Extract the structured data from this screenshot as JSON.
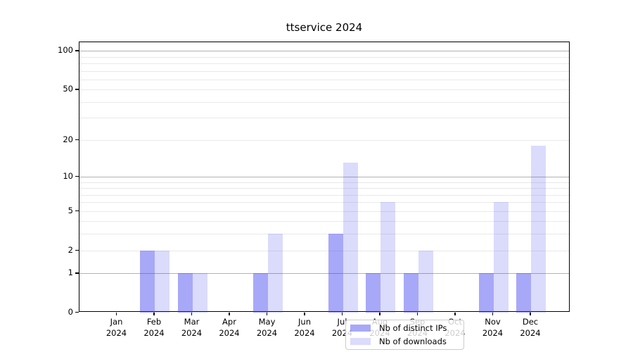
{
  "chart_data": {
    "type": "bar",
    "title": "ttservice 2024",
    "scale": "log1p (positions follow log10 of value+1, 0 at baseline)",
    "categories": [
      "Jan",
      "Feb",
      "Mar",
      "Apr",
      "May",
      "Jun",
      "Jul",
      "Aug",
      "Sep",
      "Oct",
      "Nov",
      "Dec"
    ],
    "category_sublabel": "2024",
    "xlabel": "",
    "ylabel": "",
    "series": [
      {
        "name": "Nb of distinct IPs",
        "color": "rgba(62,62,240,0.45)",
        "values": [
          0,
          2,
          1,
          0,
          1,
          0,
          3,
          1,
          1,
          0,
          1,
          1
        ]
      },
      {
        "name": "Nb of downloads",
        "color": "rgba(62,62,240,0.19)",
        "values": [
          0,
          2,
          1,
          0,
          3,
          0,
          13,
          6,
          2,
          0,
          6,
          18
        ]
      }
    ],
    "yticks": [
      0,
      1,
      2,
      5,
      10,
      20,
      50,
      100
    ],
    "decade_gridlines": [
      1,
      10,
      100
    ],
    "minor_gridlines": [
      2,
      3,
      4,
      5,
      6,
      7,
      8,
      9,
      20,
      30,
      40,
      50,
      60,
      70,
      80,
      90
    ],
    "ylim": [
      0,
      116.5
    ],
    "grid": true,
    "legend": {
      "position": "lower center",
      "entries": [
        "Nb of distinct IPs",
        "Nb of downloads"
      ]
    },
    "colors": {
      "bar_distinct_ips_rendered": "#a8a8f6",
      "bar_downloads_rendered": "#d9d9fb",
      "grid_major": "#b2b2b2",
      "grid_minor": "#e9e9e9",
      "axis": "#000000",
      "background": "#ffffff"
    }
  }
}
